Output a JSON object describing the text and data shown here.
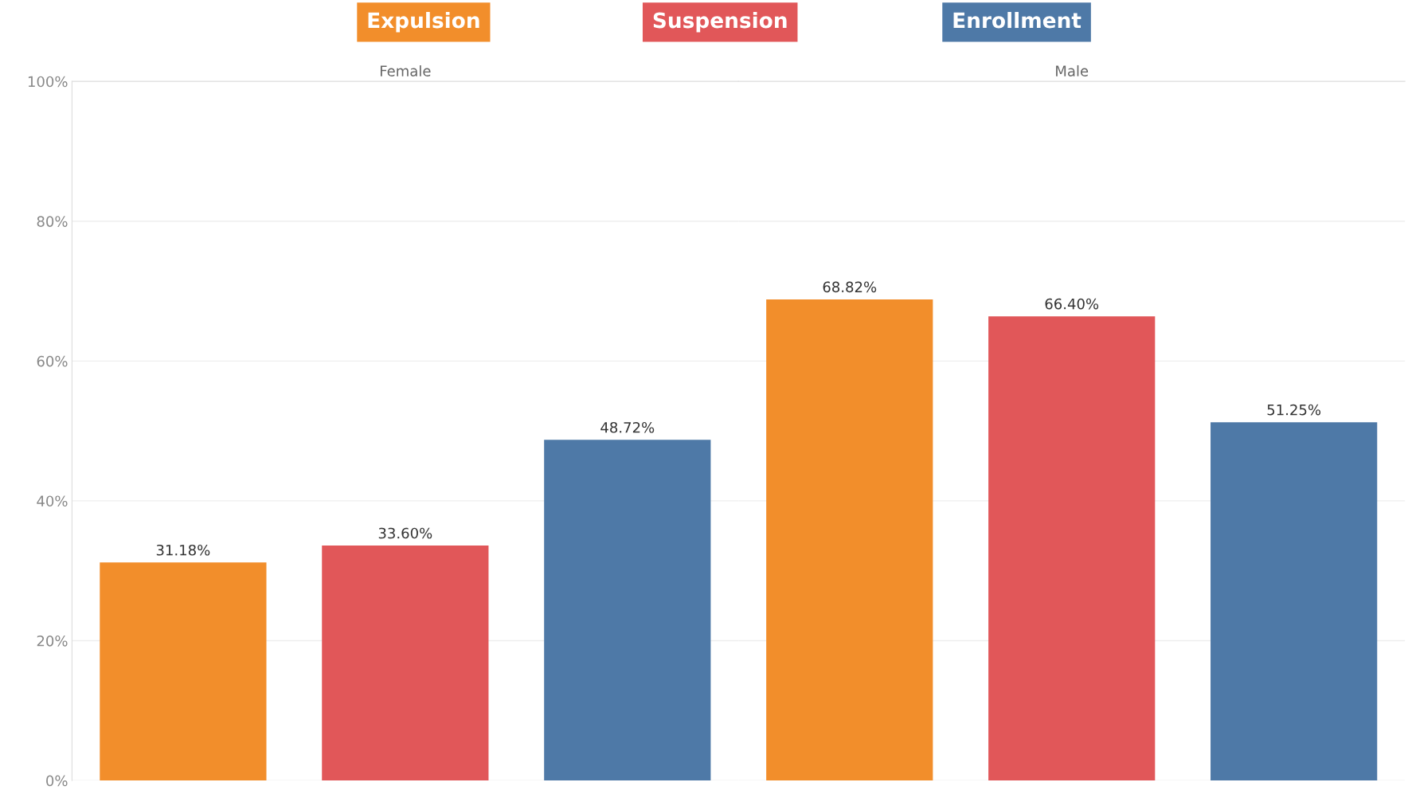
{
  "chart_data": {
    "type": "bar",
    "categories": [
      "Female",
      "Male"
    ],
    "ylim": [
      0,
      100
    ],
    "yticks": [
      {
        "value": 0,
        "label": "0%"
      },
      {
        "value": 20,
        "label": "20%"
      },
      {
        "value": 40,
        "label": "40%"
      },
      {
        "value": 60,
        "label": "60%"
      },
      {
        "value": 80,
        "label": "80%"
      },
      {
        "value": 100,
        "label": "100%"
      }
    ],
    "grid": "y",
    "legend": "top",
    "series": [
      {
        "name": "Expulsion",
        "color": "#f28e2b",
        "values": [
          31.18,
          68.82
        ],
        "value_labels": [
          "31.18%",
          "68.82%"
        ]
      },
      {
        "name": "Suspension",
        "color": "#e15759",
        "values": [
          33.6,
          66.4
        ],
        "value_labels": [
          "33.60%",
          "66.40%"
        ]
      },
      {
        "name": "Enrollment",
        "color": "#4e79a7",
        "values": [
          48.72,
          51.25
        ],
        "value_labels": [
          "48.72%",
          "51.25%"
        ]
      }
    ]
  }
}
